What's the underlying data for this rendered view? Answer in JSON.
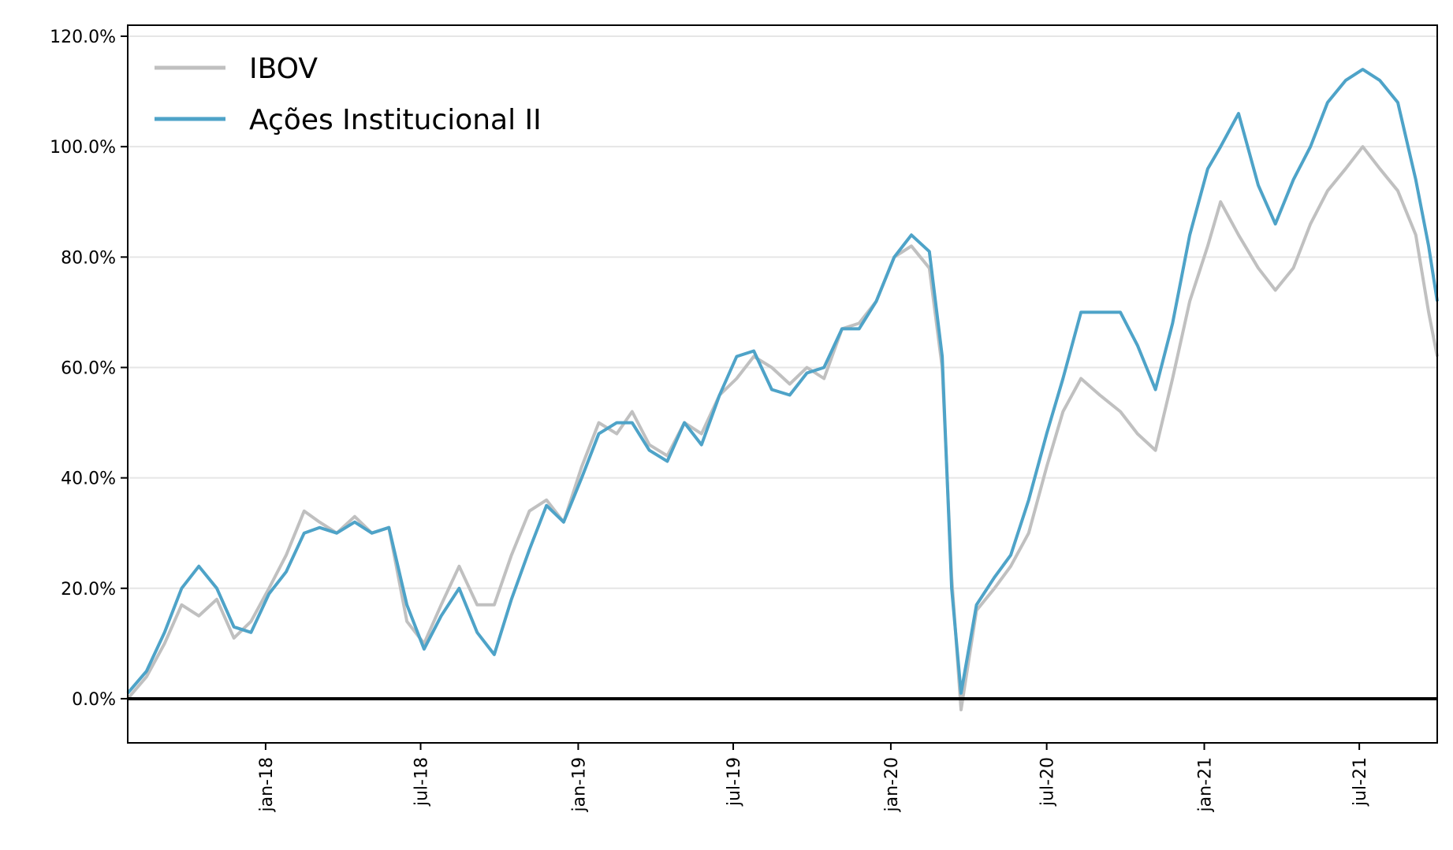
{
  "chart_data": {
    "type": "line",
    "title": "",
    "xlabel": "",
    "ylabel": "",
    "x_range": [
      "2017-07-24",
      "2021-09-30"
    ],
    "ylim": [
      -8,
      122
    ],
    "y_unit": "%",
    "grid": "horizontal",
    "legend_position": "top-left",
    "y_ticks": [
      0,
      20,
      40,
      60,
      80,
      100,
      120
    ],
    "y_tick_labels": [
      "0.0%",
      "20.0%",
      "40.0%",
      "60.0%",
      "80.0%",
      "100.0%",
      "120.0%"
    ],
    "x_ticks": [
      "2018-01-01",
      "2018-07-01",
      "2019-01-01",
      "2019-07-01",
      "2020-01-01",
      "2020-07-01",
      "2021-01-01",
      "2021-07-01"
    ],
    "x_tick_labels": [
      "jan-18",
      "jul-18",
      "jan-19",
      "jul-19",
      "jan-20",
      "jul-20",
      "jan-21",
      "jul-21"
    ],
    "reference_line": 0,
    "colors": {
      "IBOV": "#c0c0c0",
      "Ações Institucional II": "#4ea3c8",
      "zero_line": "#000000"
    },
    "series": [
      {
        "name": "IBOV",
        "x": [
          "2017-07-24",
          "2017-08-15",
          "2017-09-05",
          "2017-09-25",
          "2017-10-15",
          "2017-11-05",
          "2017-11-25",
          "2017-12-15",
          "2018-01-05",
          "2018-01-25",
          "2018-02-15",
          "2018-03-05",
          "2018-03-25",
          "2018-04-15",
          "2018-05-05",
          "2018-05-25",
          "2018-06-15",
          "2018-07-05",
          "2018-07-25",
          "2018-08-15",
          "2018-09-05",
          "2018-09-25",
          "2018-10-15",
          "2018-11-05",
          "2018-11-25",
          "2018-12-15",
          "2019-01-05",
          "2019-01-25",
          "2019-02-15",
          "2019-03-05",
          "2019-03-25",
          "2019-04-15",
          "2019-05-05",
          "2019-05-25",
          "2019-06-15",
          "2019-07-05",
          "2019-07-25",
          "2019-08-15",
          "2019-09-05",
          "2019-09-25",
          "2019-10-15",
          "2019-11-05",
          "2019-11-25",
          "2019-12-15",
          "2020-01-05",
          "2020-01-25",
          "2020-02-15",
          "2020-03-01",
          "2020-03-12",
          "2020-03-23",
          "2020-04-10",
          "2020-05-01",
          "2020-05-20",
          "2020-06-10",
          "2020-07-01",
          "2020-07-20",
          "2020-08-10",
          "2020-09-01",
          "2020-09-25",
          "2020-10-15",
          "2020-11-05",
          "2020-11-25",
          "2020-12-15",
          "2021-01-05",
          "2021-01-20",
          "2021-02-10",
          "2021-03-05",
          "2021-03-25",
          "2021-04-15",
          "2021-05-05",
          "2021-05-25",
          "2021-06-15",
          "2021-07-05",
          "2021-07-25",
          "2021-08-15",
          "2021-09-05",
          "2021-09-20",
          "2021-09-30"
        ],
        "y": [
          0,
          4,
          10,
          17,
          15,
          18,
          11,
          14,
          20,
          26,
          34,
          32,
          30,
          33,
          30,
          31,
          14,
          10,
          17,
          24,
          17,
          17,
          26,
          34,
          36,
          32,
          42,
          50,
          48,
          52,
          46,
          44,
          50,
          48,
          55,
          58,
          62,
          60,
          57,
          60,
          58,
          67,
          68,
          72,
          80,
          82,
          78,
          60,
          22,
          -2,
          16,
          20,
          24,
          30,
          42,
          52,
          58,
          55,
          52,
          48,
          45,
          58,
          72,
          82,
          90,
          84,
          78,
          74,
          78,
          86,
          92,
          96,
          100,
          96,
          92,
          84,
          70,
          62
        ]
      },
      {
        "name": "Ações Institucional II",
        "x": [
          "2017-07-24",
          "2017-08-15",
          "2017-09-05",
          "2017-09-25",
          "2017-10-15",
          "2017-11-05",
          "2017-11-25",
          "2017-12-15",
          "2018-01-05",
          "2018-01-25",
          "2018-02-15",
          "2018-03-05",
          "2018-03-25",
          "2018-04-15",
          "2018-05-05",
          "2018-05-25",
          "2018-06-15",
          "2018-07-05",
          "2018-07-25",
          "2018-08-15",
          "2018-09-05",
          "2018-09-25",
          "2018-10-15",
          "2018-11-05",
          "2018-11-25",
          "2018-12-15",
          "2019-01-05",
          "2019-01-25",
          "2019-02-15",
          "2019-03-05",
          "2019-03-25",
          "2019-04-15",
          "2019-05-05",
          "2019-05-25",
          "2019-06-15",
          "2019-07-05",
          "2019-07-25",
          "2019-08-15",
          "2019-09-05",
          "2019-09-25",
          "2019-10-15",
          "2019-11-05",
          "2019-11-25",
          "2019-12-15",
          "2020-01-05",
          "2020-01-25",
          "2020-02-15",
          "2020-03-01",
          "2020-03-12",
          "2020-03-23",
          "2020-04-10",
          "2020-05-01",
          "2020-05-20",
          "2020-06-10",
          "2020-07-01",
          "2020-07-20",
          "2020-08-10",
          "2020-09-01",
          "2020-09-25",
          "2020-10-15",
          "2020-11-05",
          "2020-11-25",
          "2020-12-15",
          "2021-01-05",
          "2021-01-20",
          "2021-02-10",
          "2021-03-05",
          "2021-03-25",
          "2021-04-15",
          "2021-05-05",
          "2021-05-25",
          "2021-06-15",
          "2021-07-05",
          "2021-07-25",
          "2021-08-15",
          "2021-09-05",
          "2021-09-20",
          "2021-09-30"
        ],
        "y": [
          1,
          5,
          12,
          20,
          24,
          20,
          13,
          12,
          19,
          23,
          30,
          31,
          30,
          32,
          30,
          31,
          17,
          9,
          15,
          20,
          12,
          8,
          18,
          27,
          35,
          32,
          40,
          48,
          50,
          50,
          45,
          43,
          50,
          46,
          55,
          62,
          63,
          56,
          55,
          59,
          60,
          67,
          67,
          72,
          80,
          84,
          81,
          62,
          20,
          1,
          17,
          22,
          26,
          36,
          48,
          58,
          70,
          70,
          70,
          64,
          56,
          68,
          84,
          96,
          100,
          106,
          93,
          86,
          94,
          100,
          108,
          112,
          114,
          112,
          108,
          94,
          82,
          72
        ]
      }
    ]
  }
}
